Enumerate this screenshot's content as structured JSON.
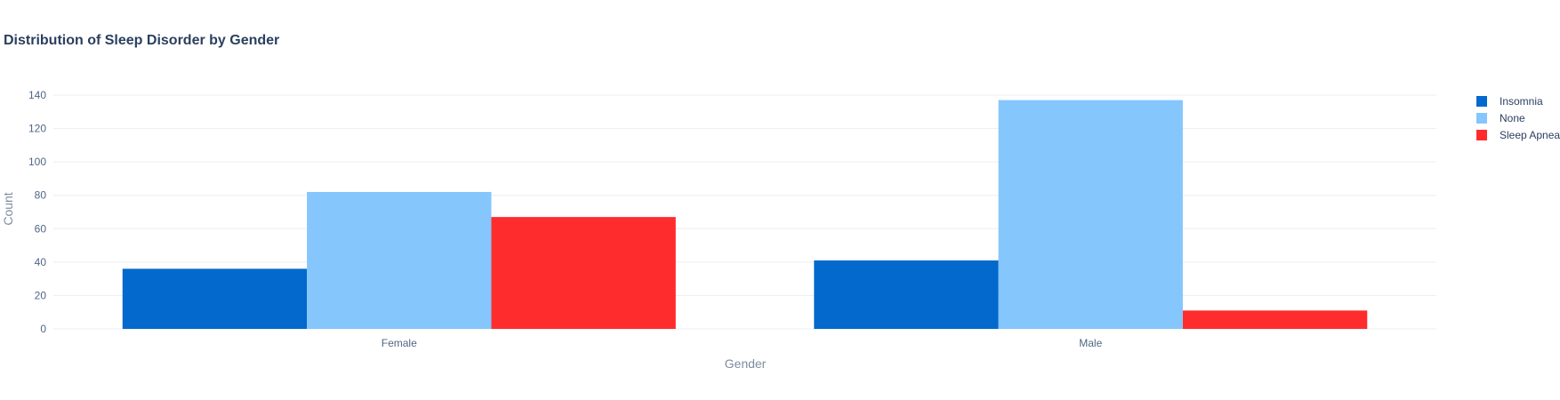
{
  "chart_data": {
    "type": "bar",
    "title": "Distribution of Sleep Disorder by Gender",
    "xlabel": "Gender",
    "ylabel": "Count",
    "categories": [
      "Female",
      "Male"
    ],
    "series": [
      {
        "name": "Insomnia",
        "color": "#0369cc",
        "values": [
          36,
          41
        ]
      },
      {
        "name": "None",
        "color": "#85c6fd",
        "values": [
          82,
          137
        ]
      },
      {
        "name": "Sleep Apnea",
        "color": "#fe2c2d",
        "values": [
          67,
          11
        ]
      }
    ],
    "ylim": [
      0,
      140
    ],
    "yticks": [
      0,
      20,
      40,
      60,
      80,
      100,
      120,
      140
    ],
    "grid": true,
    "legend_position": "right"
  }
}
